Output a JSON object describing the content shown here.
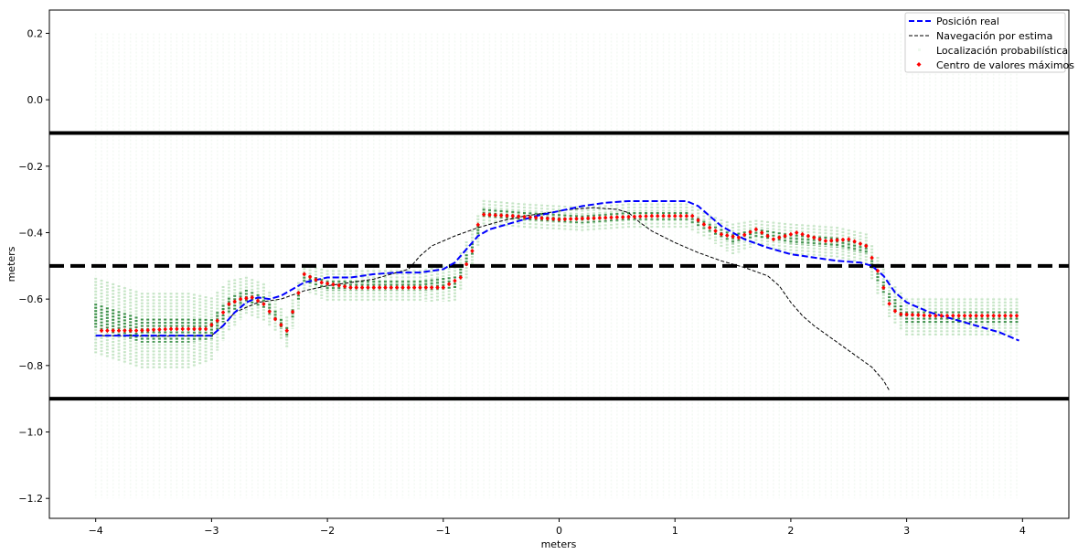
{
  "chart_data": {
    "type": "line",
    "xlabel": "meters",
    "ylabel": "meters",
    "xlim": [
      -4.4,
      4.4
    ],
    "ylim": [
      -1.26,
      0.27
    ],
    "xticks": [
      -4,
      -3,
      -2,
      -1,
      0,
      1,
      2,
      3,
      4
    ],
    "xtick_labels": [
      "−4",
      "−3",
      "−2",
      "−1",
      "0",
      "1",
      "2",
      "3",
      "4"
    ],
    "yticks": [
      0.2,
      0.0,
      -0.2,
      -0.4,
      -0.6,
      -0.8,
      -1.0,
      -1.2
    ],
    "ytick_labels": [
      "0.2",
      "0.0",
      "−0.2",
      "−0.4",
      "−0.6",
      "−0.8",
      "−1.0",
      "−1.2"
    ],
    "grid": false,
    "legend_position": "top-right",
    "reference_lines": [
      {
        "y": -0.1,
        "style": "solid",
        "color": "#000000"
      },
      {
        "y": -0.5,
        "style": "dashed",
        "color": "#000000"
      },
      {
        "y": -0.9,
        "style": "solid",
        "color": "#000000"
      }
    ],
    "series": [
      {
        "name": "Posición real",
        "style": "dashed",
        "color": "#0000ff",
        "points": [
          [
            -4.0,
            -0.71
          ],
          [
            -3.5,
            -0.71
          ],
          [
            -3.0,
            -0.71
          ],
          [
            -2.9,
            -0.68
          ],
          [
            -2.8,
            -0.64
          ],
          [
            -2.7,
            -0.61
          ],
          [
            -2.6,
            -0.595
          ],
          [
            -2.5,
            -0.6
          ],
          [
            -2.4,
            -0.59
          ],
          [
            -2.3,
            -0.57
          ],
          [
            -2.2,
            -0.55
          ],
          [
            -2.0,
            -0.535
          ],
          [
            -1.8,
            -0.535
          ],
          [
            -1.6,
            -0.525
          ],
          [
            -1.4,
            -0.52
          ],
          [
            -1.2,
            -0.52
          ],
          [
            -1.0,
            -0.51
          ],
          [
            -0.9,
            -0.49
          ],
          [
            -0.8,
            -0.45
          ],
          [
            -0.7,
            -0.41
          ],
          [
            -0.6,
            -0.39
          ],
          [
            -0.4,
            -0.37
          ],
          [
            -0.2,
            -0.35
          ],
          [
            0.0,
            -0.335
          ],
          [
            0.2,
            -0.32
          ],
          [
            0.4,
            -0.31
          ],
          [
            0.6,
            -0.305
          ],
          [
            0.8,
            -0.305
          ],
          [
            1.0,
            -0.305
          ],
          [
            1.1,
            -0.305
          ],
          [
            1.2,
            -0.32
          ],
          [
            1.3,
            -0.35
          ],
          [
            1.4,
            -0.38
          ],
          [
            1.5,
            -0.4
          ],
          [
            1.6,
            -0.42
          ],
          [
            1.8,
            -0.445
          ],
          [
            2.0,
            -0.465
          ],
          [
            2.2,
            -0.475
          ],
          [
            2.4,
            -0.485
          ],
          [
            2.6,
            -0.49
          ],
          [
            2.7,
            -0.5
          ],
          [
            2.8,
            -0.53
          ],
          [
            2.9,
            -0.58
          ],
          [
            3.0,
            -0.61
          ],
          [
            3.2,
            -0.64
          ],
          [
            3.4,
            -0.66
          ],
          [
            3.6,
            -0.68
          ],
          [
            3.8,
            -0.7
          ],
          [
            3.97,
            -0.725
          ]
        ]
      },
      {
        "name": "Navegación por estima",
        "style": "dashed-thin",
        "color": "#000000",
        "points": [
          [
            -4.0,
            -0.71
          ],
          [
            -3.5,
            -0.712
          ],
          [
            -3.0,
            -0.71
          ],
          [
            -2.9,
            -0.68
          ],
          [
            -2.8,
            -0.64
          ],
          [
            -2.6,
            -0.61
          ],
          [
            -2.4,
            -0.6
          ],
          [
            -2.2,
            -0.575
          ],
          [
            -2.0,
            -0.56
          ],
          [
            -1.8,
            -0.55
          ],
          [
            -1.6,
            -0.54
          ],
          [
            -1.4,
            -0.52
          ],
          [
            -1.3,
            -0.51
          ],
          [
            -1.2,
            -0.47
          ],
          [
            -1.1,
            -0.44
          ],
          [
            -0.9,
            -0.41
          ],
          [
            -0.7,
            -0.385
          ],
          [
            -0.5,
            -0.365
          ],
          [
            -0.3,
            -0.35
          ],
          [
            -0.1,
            -0.34
          ],
          [
            0.1,
            -0.33
          ],
          [
            0.3,
            -0.325
          ],
          [
            0.5,
            -0.33
          ],
          [
            0.6,
            -0.34
          ],
          [
            0.7,
            -0.37
          ],
          [
            0.8,
            -0.395
          ],
          [
            1.0,
            -0.43
          ],
          [
            1.2,
            -0.46
          ],
          [
            1.4,
            -0.485
          ],
          [
            1.6,
            -0.505
          ],
          [
            1.8,
            -0.53
          ],
          [
            1.9,
            -0.56
          ],
          [
            2.0,
            -0.61
          ],
          [
            2.1,
            -0.65
          ],
          [
            2.2,
            -0.68
          ],
          [
            2.3,
            -0.705
          ],
          [
            2.4,
            -0.73
          ],
          [
            2.5,
            -0.755
          ],
          [
            2.6,
            -0.78
          ],
          [
            2.7,
            -0.805
          ],
          [
            2.8,
            -0.845
          ],
          [
            2.85,
            -0.875
          ]
        ]
      },
      {
        "name": "Localización probabilística",
        "style": "particles",
        "color": "#2ca02c",
        "cloud": [
          [
            -4.0,
            -0.65,
            0.06
          ],
          [
            -3.6,
            -0.695,
            0.06
          ],
          [
            -3.2,
            -0.695,
            0.06
          ],
          [
            -3.0,
            -0.69,
            0.05
          ],
          [
            -2.85,
            -0.62,
            0.04
          ],
          [
            -2.7,
            -0.59,
            0.03
          ],
          [
            -2.55,
            -0.61,
            0.03
          ],
          [
            -2.45,
            -0.65,
            0.025
          ],
          [
            -2.35,
            -0.7,
            0.025
          ],
          [
            -2.2,
            -0.535,
            0.02
          ],
          [
            -2.0,
            -0.56,
            0.025
          ],
          [
            -1.6,
            -0.56,
            0.025
          ],
          [
            -1.2,
            -0.56,
            0.025
          ],
          [
            -0.9,
            -0.55,
            0.03
          ],
          [
            -0.75,
            -0.45,
            0.03
          ],
          [
            -0.65,
            -0.34,
            0.02
          ],
          [
            -0.3,
            -0.35,
            0.02
          ],
          [
            0.2,
            -0.36,
            0.02
          ],
          [
            0.6,
            -0.35,
            0.02
          ],
          [
            1.1,
            -0.35,
            0.02
          ],
          [
            1.3,
            -0.385,
            0.02
          ],
          [
            1.5,
            -0.42,
            0.025
          ],
          [
            1.7,
            -0.4,
            0.02
          ],
          [
            2.0,
            -0.42,
            0.025
          ],
          [
            2.4,
            -0.43,
            0.025
          ],
          [
            2.65,
            -0.45,
            0.025
          ],
          [
            2.75,
            -0.53,
            0.03
          ],
          [
            2.85,
            -0.6,
            0.03
          ],
          [
            3.0,
            -0.655,
            0.03
          ],
          [
            3.5,
            -0.655,
            0.03
          ],
          [
            3.95,
            -0.655,
            0.03
          ]
        ]
      },
      {
        "name": "Centro de valores máximos",
        "style": "markers",
        "color": "#ff0000",
        "points": [
          [
            -3.95,
            -0.695
          ],
          [
            -3.65,
            -0.695
          ],
          [
            -3.35,
            -0.69
          ],
          [
            -3.05,
            -0.69
          ],
          [
            -2.95,
            -0.665
          ],
          [
            -2.85,
            -0.615
          ],
          [
            -2.75,
            -0.6
          ],
          [
            -2.65,
            -0.595
          ],
          [
            -2.55,
            -0.615
          ],
          [
            -2.45,
            -0.66
          ],
          [
            -2.35,
            -0.695
          ],
          [
            -2.2,
            -0.525
          ],
          [
            -2.05,
            -0.55
          ],
          [
            -1.8,
            -0.565
          ],
          [
            -1.4,
            -0.565
          ],
          [
            -1.0,
            -0.565
          ],
          [
            -0.85,
            -0.535
          ],
          [
            -0.75,
            -0.455
          ],
          [
            -0.68,
            -0.345
          ],
          [
            -0.4,
            -0.35
          ],
          [
            0.0,
            -0.36
          ],
          [
            0.4,
            -0.355
          ],
          [
            0.8,
            -0.35
          ],
          [
            1.15,
            -0.35
          ],
          [
            1.25,
            -0.375
          ],
          [
            1.4,
            -0.405
          ],
          [
            1.55,
            -0.415
          ],
          [
            1.7,
            -0.39
          ],
          [
            1.85,
            -0.42
          ],
          [
            2.05,
            -0.4
          ],
          [
            2.3,
            -0.425
          ],
          [
            2.5,
            -0.42
          ],
          [
            2.65,
            -0.44
          ],
          [
            2.72,
            -0.49
          ],
          [
            2.78,
            -0.54
          ],
          [
            2.83,
            -0.605
          ],
          [
            2.92,
            -0.645
          ],
          [
            3.2,
            -0.65
          ],
          [
            3.6,
            -0.65
          ],
          [
            3.95,
            -0.65
          ]
        ]
      }
    ]
  }
}
